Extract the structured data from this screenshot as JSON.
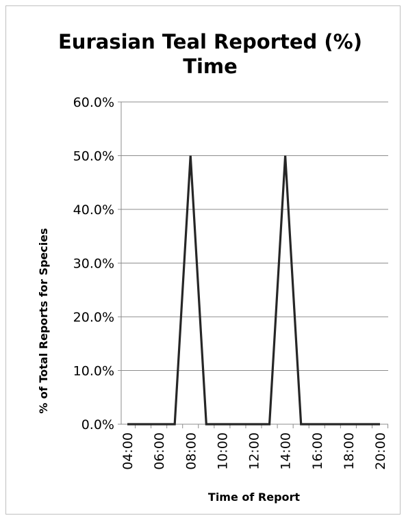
{
  "chart_data": {
    "type": "line",
    "title": [
      "Eurasian Teal Reported (%)",
      "Time"
    ],
    "xlabel": "Time of Report",
    "ylabel": "% of Total Reports for Species",
    "x": [
      "04:00",
      "05:00",
      "06:00",
      "07:00",
      "08:00",
      "09:00",
      "10:00",
      "11:00",
      "12:00",
      "13:00",
      "14:00",
      "15:00",
      "16:00",
      "17:00",
      "18:00",
      "19:00",
      "20:00"
    ],
    "xtick_labels": [
      "04:00",
      "06:00",
      "08:00",
      "10:00",
      "12:00",
      "14:00",
      "16:00",
      "18:00",
      "20:00"
    ],
    "ytick_labels": [
      "0.0%",
      "10.0%",
      "20.0%",
      "30.0%",
      "40.0%",
      "50.0%",
      "60.0%"
    ],
    "ylim": [
      0,
      0.6
    ],
    "grid": "horizontal",
    "series": [
      {
        "values": [
          0,
          0,
          0,
          0,
          0.5,
          0,
          0,
          0,
          0,
          0,
          0.5,
          0,
          0,
          0,
          0,
          0,
          0
        ],
        "color": "#262626"
      }
    ]
  }
}
